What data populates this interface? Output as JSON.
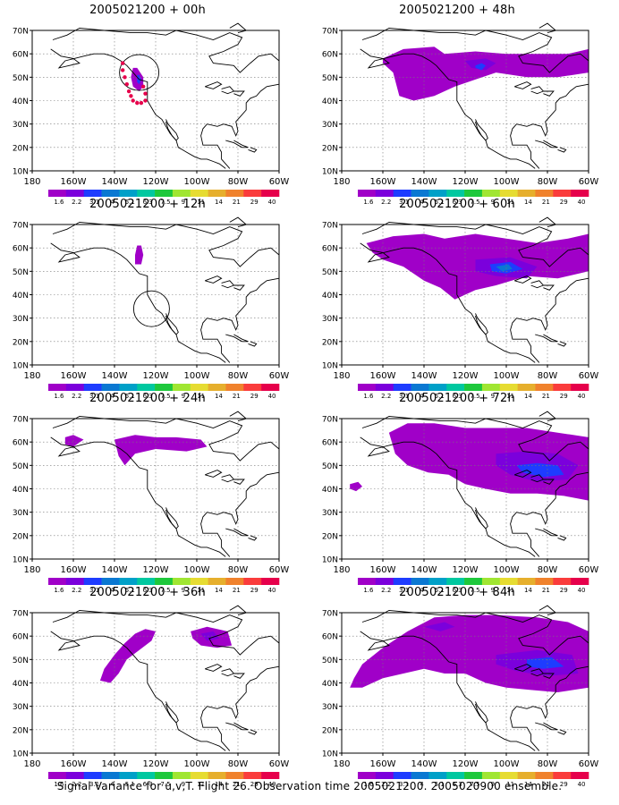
{
  "chart_data": {
    "type": "contour_map_panels",
    "caption": "Signal Variance for u,v,T. Flight 26. Observation time 2005021200. 2005020900 ensemble.",
    "x_ticks": [
      "180",
      "160W",
      "140W",
      "120W",
      "100W",
      "80W",
      "60W"
    ],
    "y_ticks": [
      "70N",
      "60N",
      "50N",
      "40N",
      "30N",
      "20N",
      "10N"
    ],
    "colorbar": {
      "labels": [
        "1.6",
        "2.2",
        "3.1",
        "4",
        "5.1",
        "6.3",
        "7.5",
        "9",
        "11",
        "14",
        "21",
        "29",
        "40"
      ],
      "colors": [
        "#a000c8",
        "#7b00dc",
        "#1e3cff",
        "#0a78d2",
        "#00a0c8",
        "#00c8a0",
        "#1ec83c",
        "#a0e632",
        "#e6dc32",
        "#e6af2d",
        "#f0822d",
        "#fa3c3c",
        "#e6004b"
      ]
    },
    "panels": [
      {
        "title": "2005021200 + 00h",
        "lead_hours": 0
      },
      {
        "title": "2005021200 + 48h",
        "lead_hours": 48
      },
      {
        "title": "2005021200 + 12h",
        "lead_hours": 12
      },
      {
        "title": "2005021200 + 60h",
        "lead_hours": 60
      },
      {
        "title": "2005021200 + 24h",
        "lead_hours": 24
      },
      {
        "title": "2005021200 + 72h",
        "lead_hours": 72
      },
      {
        "title": "2005021200 + 36h",
        "lead_hours": 36
      },
      {
        "title": "2005021200 + 84h",
        "lead_hours": 84
      }
    ]
  }
}
